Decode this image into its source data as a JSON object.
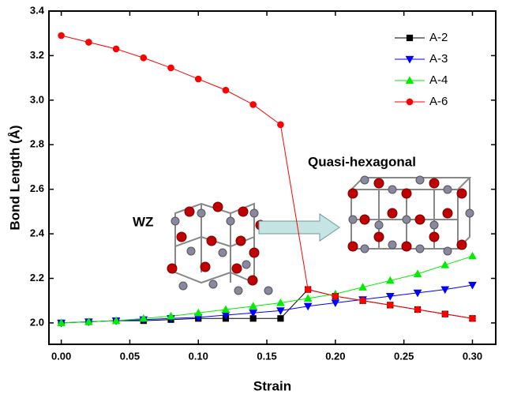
{
  "chart_data": {
    "type": "line",
    "x_label": "Strain",
    "y_label": "Bond Length (Å)",
    "annotations": [
      "WZ",
      "Quasi-hexagonal"
    ],
    "x": [
      0,
      0.02,
      0.04,
      0.06,
      0.08,
      0.1,
      0.12,
      0.14,
      0.16,
      0.18,
      0.2,
      0.22,
      0.24,
      0.26,
      0.28,
      0.3
    ],
    "series": [
      {
        "name": "A-2",
        "color": "#000000",
        "marker": "square",
        "values": [
          2.0,
          2.005,
          2.01,
          2.01,
          2.015,
          2.02,
          2.02,
          2.02,
          2.02,
          2.15,
          2.12,
          2.1,
          2.08,
          2.06,
          2.04,
          2.02
        ]
      },
      {
        "name": "A-3",
        "color": "#0000ff",
        "marker": "triangle-down",
        "values": [
          2.0,
          2.005,
          2.01,
          2.015,
          2.02,
          2.025,
          2.035,
          2.045,
          2.055,
          2.075,
          2.09,
          2.105,
          2.12,
          2.135,
          2.15,
          2.17
        ]
      },
      {
        "name": "A-4",
        "color": "#00ee00",
        "marker": "triangle-up",
        "values": [
          2.0,
          2.005,
          2.01,
          2.02,
          2.03,
          2.045,
          2.06,
          2.075,
          2.09,
          2.11,
          2.13,
          2.16,
          2.19,
          2.22,
          2.26,
          2.3
        ]
      },
      {
        "name": "A-6",
        "color": "#ff0000",
        "marker": "circle",
        "values": [
          3.29,
          3.26,
          3.23,
          3.19,
          3.145,
          3.095,
          3.045,
          2.98,
          2.89,
          2.15,
          2.12,
          2.1,
          2.08,
          2.06,
          2.04,
          2.02
        ]
      }
    ],
    "xlim": [
      -0.009,
      0.317
    ],
    "ylim": [
      1.904,
      3.4
    ],
    "xticks": [
      {
        "value": 0,
        "label": "0.00"
      },
      {
        "value": 0.05,
        "label": "0.05"
      },
      {
        "value": 0.1,
        "label": "0.10"
      },
      {
        "value": 0.15,
        "label": "0.15"
      },
      {
        "value": 0.2,
        "label": "0.20"
      },
      {
        "value": 0.25,
        "label": "0.25"
      },
      {
        "value": 0.3,
        "label": "0.30"
      }
    ],
    "yticks": [
      {
        "value": 2,
        "label": "2.0"
      },
      2.2,
      2.4,
      2.6,
      2.8,
      {
        "value": 3,
        "label": "3.0"
      },
      3.2,
      3.4
    ],
    "grid": false,
    "legend": "top-right"
  }
}
